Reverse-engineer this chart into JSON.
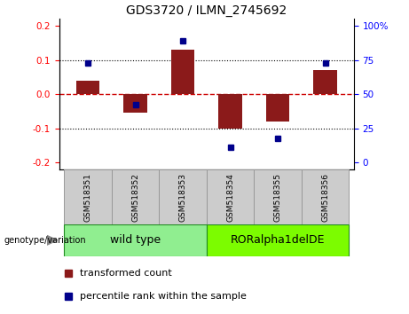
{
  "title": "GDS3720 / ILMN_2745692",
  "samples": [
    "GSM518351",
    "GSM518352",
    "GSM518353",
    "GSM518354",
    "GSM518355",
    "GSM518356"
  ],
  "red_bars": [
    0.04,
    -0.055,
    0.13,
    -0.1,
    -0.08,
    0.07
  ],
  "blue_dots_left_axis": [
    0.09,
    -0.03,
    0.155,
    -0.155,
    -0.13,
    0.09
  ],
  "groups": [
    {
      "label": "wild type",
      "indices": [
        0,
        1,
        2
      ],
      "color": "#90EE90"
    },
    {
      "label": "RORalpha1delDE",
      "indices": [
        3,
        4,
        5
      ],
      "color": "#7CFC00"
    }
  ],
  "ylim": [
    -0.22,
    0.22
  ],
  "yticks_left": [
    -0.2,
    -0.1,
    0.0,
    0.1,
    0.2
  ],
  "yticks_right_pct": [
    0,
    25,
    50,
    75,
    100
  ],
  "bar_color": "#8B1A1A",
  "dot_color": "#00008B",
  "zero_line_color": "#CC0000",
  "bg_color": "#FFFFFF",
  "bar_width": 0.5,
  "legend_items": [
    "transformed count",
    "percentile rank within the sample"
  ],
  "genotype_label": "genotype/variation",
  "title_fontsize": 10,
  "tick_fontsize": 7.5,
  "sample_fontsize": 6.5,
  "group_fontsize": 9,
  "legend_fontsize": 8
}
